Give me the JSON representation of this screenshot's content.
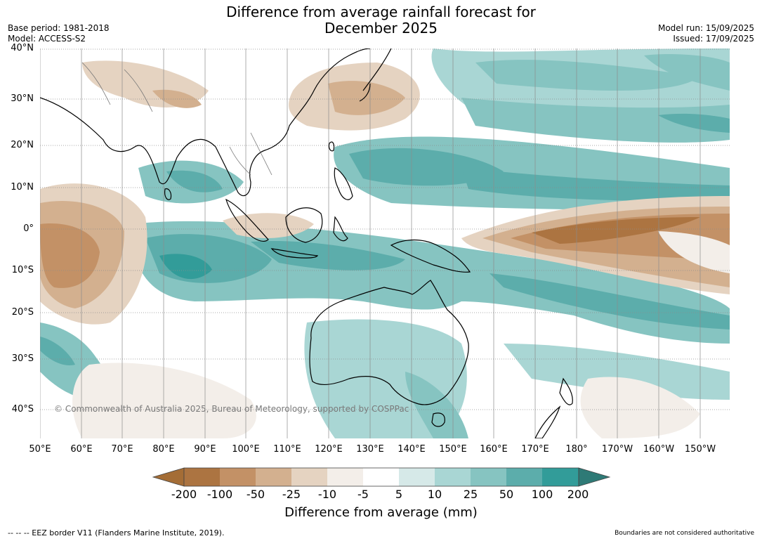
{
  "title_line1": "Difference from average rainfall forecast for",
  "title_line2": "December 2025",
  "base_period": "Base period: 1981-2018",
  "model": "Model: ACCESS-S2",
  "model_run": "Model run: 15/09/2025",
  "issued": "Issued: 17/09/2025",
  "lat_labels": [
    "40°N",
    "30°N",
    "20°N",
    "10°N",
    "0°",
    "10°S",
    "20°S",
    "30°S",
    "40°S"
  ],
  "lon_labels": [
    "50°E",
    "60°E",
    "70°E",
    "80°E",
    "90°E",
    "100°E",
    "110°E",
    "120°E",
    "130°E",
    "140°E",
    "150°E",
    "160°E",
    "170°E",
    "180°",
    "170°W",
    "160°W",
    "150°W"
  ],
  "copyright": "© Commonwealth of Australia 2025, Bureau of Meteorology, supported by COSPPac",
  "colorbar": {
    "title": "Difference from average (mm)",
    "labels": [
      "-200",
      "-100",
      "-50",
      "-25",
      "-10",
      "-5",
      "5",
      "10",
      "25",
      "50",
      "100",
      "200"
    ],
    "colors": [
      "#a46d36",
      "#ac7441",
      "#c39166",
      "#d3b08f",
      "#e5d3c1",
      "#f3eee9",
      "#ffffff",
      "#d6e9e8",
      "#a9d6d4",
      "#86c4c1",
      "#5cadab",
      "#329c99",
      "#2e7a76"
    ]
  },
  "footer_left": "--  --  -- EEZ border V11 (Flanders Marine Institute, 2019).",
  "footer_right": "Boundaries are not considered authoritative"
}
